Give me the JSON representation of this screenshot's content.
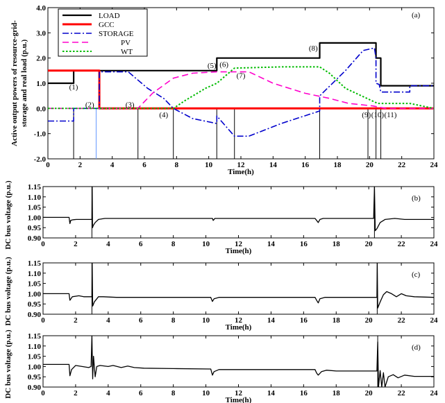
{
  "chart_data": [
    {
      "type": "line",
      "panel_label": "(a)",
      "xlabel": "Time(h)",
      "ylabel_lines": [
        "Active output powers  of resource-grid-",
        "storage and real load (p.u.)"
      ],
      "xlim": [
        0,
        24
      ],
      "ylim": [
        -2.0,
        4.0
      ],
      "xticks": [
        0,
        2,
        4,
        6,
        8,
        10,
        12,
        14,
        16,
        18,
        20,
        22,
        24
      ],
      "yticks": [
        -2.0,
        -1.0,
        0.0,
        1.0,
        2.0,
        3.0,
        4.0
      ],
      "ytick_labels": [
        "-2.0",
        "-1.0",
        "0.0",
        "1.0",
        "2.0",
        "3.0",
        "4.0"
      ],
      "series": [
        {
          "name": "LOAD",
          "color": "#000000",
          "style": "solid",
          "width": 2.2,
          "points": [
            [
              0,
              1.0
            ],
            [
              1.6,
              1.0
            ],
            [
              1.6,
              1.5
            ],
            [
              10.5,
              1.5
            ],
            [
              10.5,
              2.0
            ],
            [
              16.9,
              2.0
            ],
            [
              16.9,
              2.6
            ],
            [
              20.4,
              2.6
            ],
            [
              20.4,
              2.0
            ],
            [
              20.7,
              2.0
            ],
            [
              20.7,
              0.9
            ],
            [
              24,
              0.9
            ]
          ]
        },
        {
          "name": "GCC",
          "color": "#ff0000",
          "style": "solid",
          "width": 3,
          "points": [
            [
              0,
              1.5
            ],
            [
              3.2,
              1.5
            ],
            [
              3.2,
              0.0
            ],
            [
              24,
              0.0
            ]
          ]
        },
        {
          "name": "STORAGE",
          "color": "#0000cc",
          "style": "dashdot",
          "width": 1.6,
          "points": [
            [
              0,
              -0.5
            ],
            [
              1.6,
              -0.5
            ],
            [
              1.6,
              0.0
            ],
            [
              3.2,
              0.0
            ],
            [
              3.2,
              1.45
            ],
            [
              5.0,
              1.45
            ],
            [
              6.2,
              0.8
            ],
            [
              7.2,
              0.4
            ],
            [
              7.8,
              0.0
            ],
            [
              9.0,
              -0.4
            ],
            [
              10.5,
              -0.6
            ],
            [
              10.5,
              -0.3
            ],
            [
              11.6,
              -1.1
            ],
            [
              12.5,
              -1.1
            ],
            [
              14.5,
              -0.6
            ],
            [
              16.9,
              -0.1
            ],
            [
              16.9,
              0.5
            ],
            [
              18.5,
              1.5
            ],
            [
              19.6,
              2.3
            ],
            [
              20.3,
              2.4
            ],
            [
              20.4,
              2.0
            ],
            [
              20.4,
              1.0
            ],
            [
              20.6,
              0.95
            ],
            [
              20.7,
              0.65
            ],
            [
              22.5,
              0.65
            ],
            [
              22.5,
              0.9
            ],
            [
              24,
              0.9
            ]
          ]
        },
        {
          "name": "PV",
          "color": "#ff00cc",
          "style": "dashed",
          "width": 1.6,
          "points": [
            [
              0,
              0.0
            ],
            [
              5.6,
              0.0
            ],
            [
              6.5,
              0.6
            ],
            [
              7.8,
              1.2
            ],
            [
              9.0,
              1.4
            ],
            [
              10.5,
              1.45
            ],
            [
              12.5,
              1.45
            ],
            [
              14.0,
              1.0
            ],
            [
              16.0,
              0.6
            ],
            [
              17.5,
              0.4
            ],
            [
              18.7,
              0.2
            ],
            [
              20.2,
              0.1
            ],
            [
              21.0,
              0.0
            ],
            [
              24,
              0.0
            ]
          ]
        },
        {
          "name": "WT",
          "color": "#00bb00",
          "style": "dotted",
          "width": 2,
          "points": [
            [
              0,
              0.0
            ],
            [
              7.8,
              0.0
            ],
            [
              8.5,
              0.3
            ],
            [
              9.8,
              0.8
            ],
            [
              10.5,
              1.0
            ],
            [
              11.6,
              1.6
            ],
            [
              14.5,
              1.65
            ],
            [
              16.9,
              1.65
            ],
            [
              17.5,
              1.4
            ],
            [
              18.5,
              0.8
            ],
            [
              19.5,
              0.5
            ],
            [
              20.5,
              0.2
            ],
            [
              22.5,
              0.2
            ],
            [
              24,
              0.0
            ]
          ]
        }
      ],
      "vlines": [
        {
          "x": 1.6,
          "color": "#000000"
        },
        {
          "x": 3.0,
          "color": "#6699ff"
        },
        {
          "x": 5.6,
          "color": "#000000"
        },
        {
          "x": 7.8,
          "color": "#000000"
        },
        {
          "x": 10.5,
          "color": "#000000"
        },
        {
          "x": 11.6,
          "color": "#000000"
        },
        {
          "x": 16.9,
          "color": "#000000"
        },
        {
          "x": 19.9,
          "color": "#000000"
        },
        {
          "x": 20.4,
          "color": "#000000"
        },
        {
          "x": 20.7,
          "color": "#000000"
        }
      ],
      "annotations": [
        {
          "text": "(1)",
          "x": 1.6,
          "y": 0.75
        },
        {
          "text": "(2)",
          "x": 2.6,
          "y": 0.05
        },
        {
          "text": "(3)",
          "x": 5.1,
          "y": 0.05
        },
        {
          "text": "(4)",
          "x": 7.2,
          "y": -0.35
        },
        {
          "text": "(5)",
          "x": 10.2,
          "y": 1.6
        },
        {
          "text": "(6)",
          "x": 10.95,
          "y": 1.65
        },
        {
          "text": "(7)",
          "x": 12.0,
          "y": 1.2
        },
        {
          "text": "(8)",
          "x": 16.5,
          "y": 2.3
        },
        {
          "text": "(9)",
          "x": 19.8,
          "y": -0.35
        },
        {
          "text": "(10)",
          "x": 20.5,
          "y": -0.35
        },
        {
          "text": "(11)",
          "x": 21.3,
          "y": -0.35
        }
      ],
      "legend": {
        "position": "top-left"
      }
    },
    {
      "type": "line",
      "panel_label": "(b)",
      "xlabel": "Time(h)",
      "ylabel": "DC bus voltage (p.u.)",
      "xlim": [
        0,
        24
      ],
      "ylim": [
        0.9,
        1.15
      ],
      "xticks": [
        0,
        2,
        4,
        6,
        8,
        10,
        12,
        14,
        16,
        18,
        20,
        22,
        24
      ],
      "yticks": [
        0.9,
        0.95,
        1.0,
        1.05,
        1.1,
        1.15
      ],
      "ytick_labels": [
        "0.90",
        "0.95",
        "1.00",
        "1.05",
        "1.10",
        "1.15"
      ],
      "series": [
        {
          "name": "",
          "color": "#000000",
          "style": "solid",
          "width": 1.3,
          "points": [
            [
              0,
              1.0
            ],
            [
              1.6,
              1.0
            ],
            [
              1.65,
              0.97
            ],
            [
              1.7,
              0.985
            ],
            [
              1.8,
              0.988
            ],
            [
              1.9,
              0.989
            ],
            [
              2.05,
              0.99
            ],
            [
              3.0,
              0.99
            ],
            [
              3.02,
              1.15
            ],
            [
              3.04,
              0.95
            ],
            [
              3.08,
              0.96
            ],
            [
              3.2,
              0.975
            ],
            [
              3.4,
              0.99
            ],
            [
              3.8,
              0.995
            ],
            [
              4.5,
              0.995
            ],
            [
              10.4,
              0.995
            ],
            [
              10.45,
              0.985
            ],
            [
              10.55,
              0.995
            ],
            [
              16.7,
              0.995
            ],
            [
              16.8,
              0.985
            ],
            [
              16.9,
              0.975
            ],
            [
              17.0,
              0.99
            ],
            [
              17.2,
              0.995
            ],
            [
              20.3,
              0.995
            ],
            [
              20.35,
              1.15
            ],
            [
              20.4,
              0.935
            ],
            [
              20.5,
              0.945
            ],
            [
              20.7,
              0.975
            ],
            [
              21.0,
              0.99
            ],
            [
              21.6,
              0.995
            ],
            [
              22.2,
              0.99
            ],
            [
              24,
              0.99
            ]
          ]
        }
      ],
      "vlines": [
        {
          "x": 3.0,
          "color": "#000000"
        },
        {
          "x": 20.35,
          "color": "#000000"
        }
      ]
    },
    {
      "type": "line",
      "panel_label": "(c)",
      "xlabel": "Time(h)",
      "ylabel": "DC bus voltage (p.u.)",
      "xlim": [
        0,
        24
      ],
      "ylim": [
        0.9,
        1.15
      ],
      "xticks": [
        0,
        2,
        4,
        6,
        8,
        10,
        12,
        14,
        16,
        18,
        20,
        22,
        24
      ],
      "yticks": [
        0.9,
        0.95,
        1.0,
        1.05,
        1.1,
        1.15
      ],
      "ytick_labels": [
        "0.90",
        "0.95",
        "1.00",
        "1.05",
        "1.10",
        "1.15"
      ],
      "series": [
        {
          "name": "",
          "color": "#000000",
          "style": "solid",
          "width": 1.3,
          "points": [
            [
              0,
              1.0
            ],
            [
              1.6,
              1.0
            ],
            [
              1.65,
              0.968
            ],
            [
              1.8,
              0.985
            ],
            [
              2.2,
              0.99
            ],
            [
              2.5,
              0.985
            ],
            [
              3.0,
              0.985
            ],
            [
              3.02,
              1.15
            ],
            [
              3.05,
              0.94
            ],
            [
              3.15,
              0.96
            ],
            [
              3.4,
              0.985
            ],
            [
              3.7,
              0.985
            ],
            [
              4.5,
              0.982
            ],
            [
              10.3,
              0.982
            ],
            [
              10.4,
              0.962
            ],
            [
              10.5,
              0.975
            ],
            [
              10.8,
              0.982
            ],
            [
              16.7,
              0.982
            ],
            [
              16.8,
              0.968
            ],
            [
              16.9,
              0.955
            ],
            [
              17.0,
              0.975
            ],
            [
              17.3,
              0.982
            ],
            [
              20.5,
              0.982
            ],
            [
              20.52,
              1.15
            ],
            [
              20.55,
              0.93
            ],
            [
              20.7,
              0.96
            ],
            [
              20.9,
              0.995
            ],
            [
              21.1,
              1.01
            ],
            [
              21.4,
              1.0
            ],
            [
              21.7,
              0.985
            ],
            [
              22.0,
              1.0
            ],
            [
              22.3,
              0.99
            ],
            [
              22.8,
              0.985
            ],
            [
              24,
              0.982
            ]
          ]
        }
      ],
      "vlines": [
        {
          "x": 3.0,
          "color": "#000000"
        },
        {
          "x": 20.52,
          "color": "#000000"
        }
      ]
    },
    {
      "type": "line",
      "panel_label": "(d)",
      "xlabel": "Time(h)",
      "ylabel": "DC bus voltage (p.u.)",
      "xlim": [
        0,
        24
      ],
      "ylim": [
        0.9,
        1.15
      ],
      "xticks": [
        0,
        2,
        4,
        6,
        8,
        10,
        12,
        14,
        16,
        18,
        20,
        22,
        24
      ],
      "yticks": [
        0.9,
        0.95,
        1.0,
        1.05,
        1.1,
        1.15
      ],
      "ytick_labels": [
        "0.90",
        "0.95",
        "1.00",
        "1.05",
        "1.10",
        "1.15"
      ],
      "series": [
        {
          "name": "",
          "color": "#000000",
          "style": "solid",
          "width": 1.3,
          "points": [
            [
              0,
              1.01
            ],
            [
              1.6,
              1.01
            ],
            [
              1.65,
              0.955
            ],
            [
              1.75,
              0.985
            ],
            [
              2.0,
              1.005
            ],
            [
              2.4,
              1.0
            ],
            [
              2.8,
              0.995
            ],
            [
              2.95,
              1.0
            ],
            [
              3.0,
              1.15
            ],
            [
              3.05,
              0.94
            ],
            [
              3.1,
              1.05
            ],
            [
              3.2,
              0.95
            ],
            [
              3.3,
              1.0
            ],
            [
              3.5,
              1.005
            ],
            [
              4.0,
              1.0
            ],
            [
              4.3,
              1.005
            ],
            [
              4.8,
              0.995
            ],
            [
              5.2,
              1.002
            ],
            [
              5.6,
              0.995
            ],
            [
              6.2,
              0.992
            ],
            [
              8.0,
              0.99
            ],
            [
              10.3,
              0.988
            ],
            [
              10.4,
              0.958
            ],
            [
              10.5,
              0.975
            ],
            [
              10.8,
              0.985
            ],
            [
              12.0,
              0.985
            ],
            [
              16.7,
              0.985
            ],
            [
              16.8,
              0.968
            ],
            [
              16.9,
              0.958
            ],
            [
              17.1,
              0.975
            ],
            [
              17.4,
              0.982
            ],
            [
              18.0,
              0.978
            ],
            [
              20.5,
              0.978
            ],
            [
              20.55,
              1.12
            ],
            [
              20.6,
              0.9
            ],
            [
              20.7,
              0.98
            ],
            [
              20.8,
              0.9
            ],
            [
              20.9,
              0.97
            ],
            [
              21.0,
              0.9
            ],
            [
              21.2,
              0.95
            ],
            [
              21.5,
              0.96
            ],
            [
              21.8,
              0.945
            ],
            [
              22.2,
              0.958
            ],
            [
              22.8,
              0.952
            ],
            [
              24,
              0.952
            ]
          ]
        }
      ],
      "vlines": [
        {
          "x": 20.55,
          "color": "#000000"
        }
      ]
    }
  ]
}
